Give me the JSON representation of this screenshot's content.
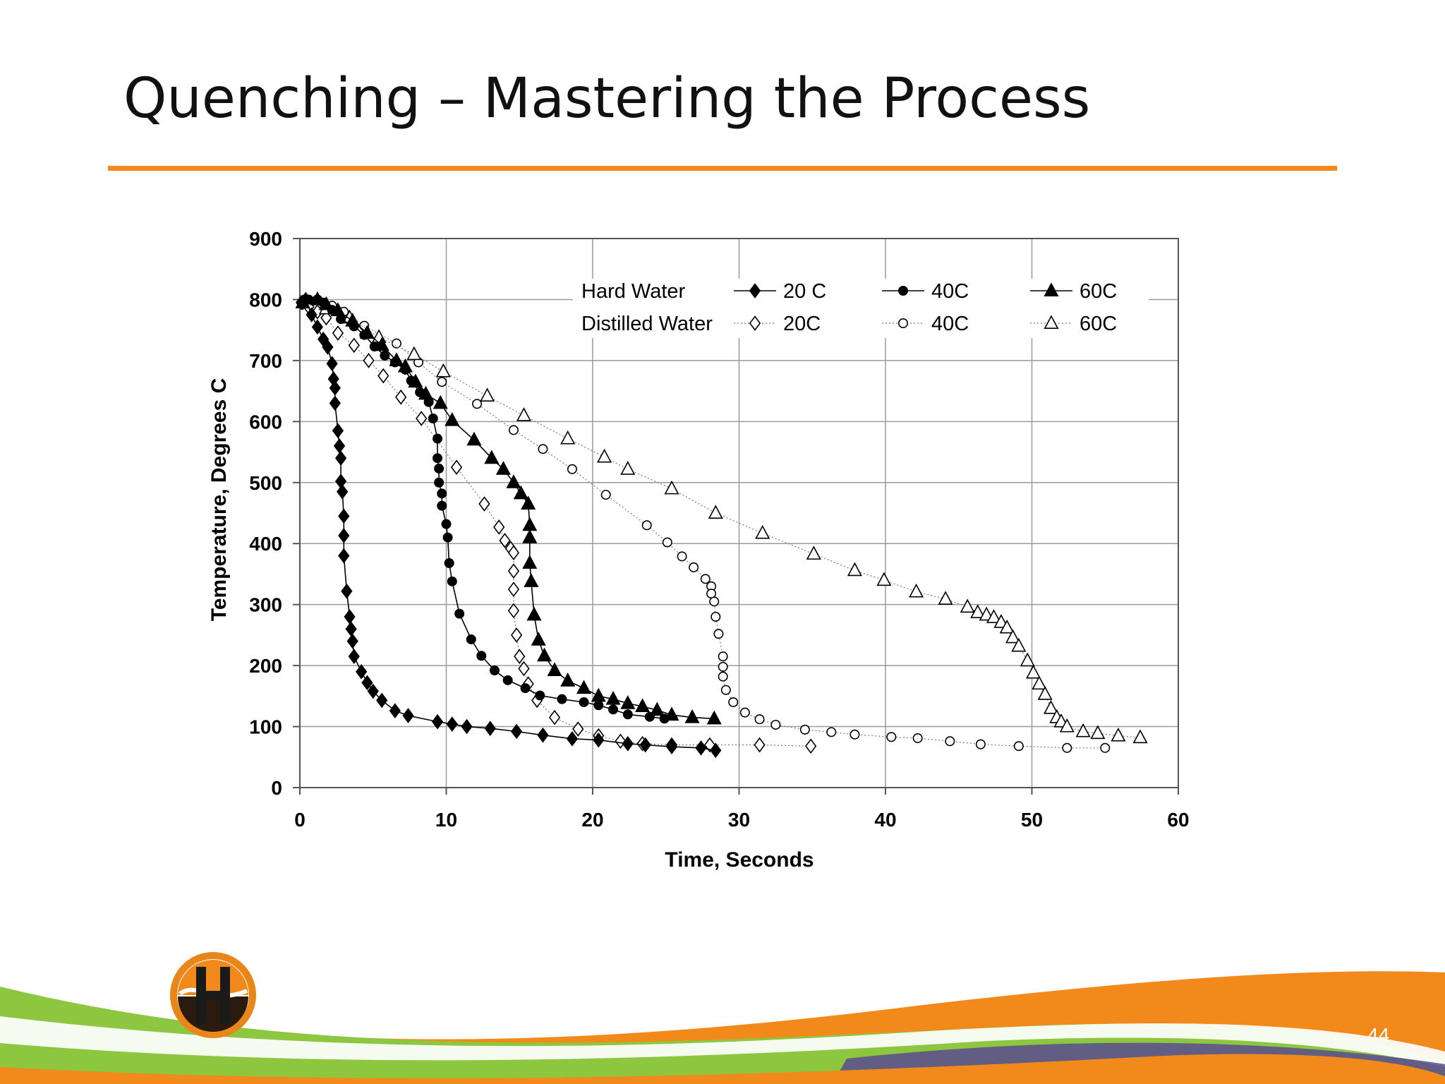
{
  "slide": {
    "title": "Quenching – Mastering the Process",
    "page_number": "44",
    "accent_color": "#f28a1b",
    "wave_colors": [
      "#f28a1b",
      "#8dc63f",
      "#5b4a8f"
    ]
  },
  "chart_data": {
    "type": "scatter",
    "xlabel": "Time, Seconds",
    "ylabel": "Temperature, Degrees C",
    "xlim": [
      0,
      60
    ],
    "ylim": [
      0,
      900
    ],
    "xticks": [
      "0",
      "10",
      "20",
      "30",
      "40",
      "50",
      "60"
    ],
    "yticks": [
      "0",
      "100",
      "200",
      "300",
      "400",
      "500",
      "600",
      "700",
      "800",
      "900"
    ],
    "grid": true,
    "legend_placement": "top-right",
    "legend": {
      "row_labels": [
        "Hard Water",
        "Distilled Water"
      ]
    },
    "series": [
      {
        "name": "20 C",
        "water": "Hard Water",
        "marker": "diamond",
        "filled": true,
        "line": "solid",
        "points": [
          [
            0.1,
            795
          ],
          [
            0.4,
            800
          ],
          [
            0.8,
            775
          ],
          [
            1.2,
            755
          ],
          [
            1.6,
            735
          ],
          [
            1.9,
            722
          ],
          [
            2.2,
            695
          ],
          [
            2.3,
            670
          ],
          [
            2.4,
            655
          ],
          [
            2.4,
            630
          ],
          [
            2.6,
            585
          ],
          [
            2.7,
            560
          ],
          [
            2.8,
            540
          ],
          [
            2.8,
            502
          ],
          [
            2.9,
            485
          ],
          [
            3.0,
            445
          ],
          [
            3.0,
            413
          ],
          [
            3.0,
            380
          ],
          [
            3.2,
            322
          ],
          [
            3.4,
            280
          ],
          [
            3.5,
            260
          ],
          [
            3.6,
            240
          ],
          [
            3.7,
            215
          ],
          [
            4.2,
            190
          ],
          [
            4.6,
            172
          ],
          [
            5.0,
            158
          ],
          [
            5.6,
            143
          ],
          [
            6.5,
            126
          ],
          [
            7.4,
            118
          ],
          [
            9.4,
            108
          ],
          [
            10.4,
            104
          ],
          [
            11.4,
            100
          ],
          [
            13.0,
            97
          ],
          [
            14.8,
            92
          ],
          [
            16.6,
            86
          ],
          [
            18.6,
            80
          ],
          [
            20.4,
            78
          ],
          [
            22.4,
            72
          ],
          [
            23.6,
            70
          ],
          [
            25.4,
            67
          ],
          [
            27.4,
            65
          ],
          [
            28.4,
            61
          ]
        ]
      },
      {
        "name": "40C",
        "water": "Hard Water",
        "marker": "circle",
        "filled": true,
        "line": "solid",
        "points": [
          [
            0.2,
            795
          ],
          [
            0.6,
            800
          ],
          [
            1.2,
            800
          ],
          [
            1.6,
            795
          ],
          [
            2.2,
            783
          ],
          [
            2.8,
            768
          ],
          [
            3.7,
            756
          ],
          [
            4.4,
            742
          ],
          [
            5.1,
            723
          ],
          [
            5.8,
            708
          ],
          [
            6.5,
            697
          ],
          [
            7.2,
            685
          ],
          [
            7.6,
            667
          ],
          [
            8.2,
            648
          ],
          [
            8.8,
            632
          ],
          [
            9.1,
            605
          ],
          [
            9.4,
            572
          ],
          [
            9.4,
            540
          ],
          [
            9.5,
            523
          ],
          [
            9.5,
            500
          ],
          [
            9.7,
            482
          ],
          [
            9.7,
            462
          ],
          [
            10.0,
            432
          ],
          [
            10.1,
            410
          ],
          [
            10.2,
            368
          ],
          [
            10.4,
            338
          ],
          [
            10.9,
            285
          ],
          [
            11.7,
            243
          ],
          [
            12.4,
            216
          ],
          [
            13.3,
            192
          ],
          [
            14.2,
            176
          ],
          [
            15.4,
            163
          ],
          [
            16.4,
            151
          ],
          [
            17.9,
            145
          ],
          [
            19.4,
            140
          ],
          [
            20.4,
            135
          ],
          [
            21.4,
            128
          ],
          [
            22.4,
            120
          ],
          [
            23.9,
            116
          ],
          [
            24.9,
            113
          ]
        ]
      },
      {
        "name": "60C",
        "water": "Hard Water",
        "marker": "triangle",
        "filled": true,
        "line": "solid",
        "points": [
          [
            0.2,
            795
          ],
          [
            1.2,
            800
          ],
          [
            1.8,
            792
          ],
          [
            2.6,
            782
          ],
          [
            3.6,
            765
          ],
          [
            4.6,
            745
          ],
          [
            5.6,
            725
          ],
          [
            6.6,
            700
          ],
          [
            7.2,
            690
          ],
          [
            7.9,
            665
          ],
          [
            8.6,
            645
          ],
          [
            9.6,
            630
          ],
          [
            10.4,
            602
          ],
          [
            11.9,
            570
          ],
          [
            13.1,
            540
          ],
          [
            13.9,
            522
          ],
          [
            14.6,
            500
          ],
          [
            15.1,
            482
          ],
          [
            15.6,
            465
          ],
          [
            15.7,
            430
          ],
          [
            15.7,
            410
          ],
          [
            15.7,
            368
          ],
          [
            15.8,
            338
          ],
          [
            16.0,
            283
          ],
          [
            16.3,
            242
          ],
          [
            16.7,
            216
          ],
          [
            17.4,
            192
          ],
          [
            18.3,
            175
          ],
          [
            19.4,
            163
          ],
          [
            20.4,
            150
          ],
          [
            21.4,
            145
          ],
          [
            22.4,
            138
          ],
          [
            23.4,
            133
          ],
          [
            24.4,
            127
          ],
          [
            25.4,
            119
          ],
          [
            26.8,
            115
          ],
          [
            28.3,
            113
          ]
        ]
      },
      {
        "name": "20C",
        "water": "Distilled Water",
        "marker": "diamond",
        "filled": false,
        "line": "dotted",
        "points": [
          [
            0.2,
            795
          ],
          [
            0.6,
            788
          ],
          [
            1.2,
            780
          ],
          [
            1.8,
            770
          ],
          [
            2.6,
            745
          ],
          [
            3.7,
            725
          ],
          [
            4.7,
            700
          ],
          [
            5.7,
            675
          ],
          [
            6.9,
            640
          ],
          [
            8.3,
            605
          ],
          [
            10.7,
            525
          ],
          [
            12.6,
            465
          ],
          [
            13.6,
            427
          ],
          [
            14.0,
            405
          ],
          [
            14.4,
            392
          ],
          [
            14.6,
            385
          ],
          [
            14.6,
            355
          ],
          [
            14.6,
            325
          ],
          [
            14.6,
            290
          ],
          [
            14.8,
            250
          ],
          [
            15.0,
            215
          ],
          [
            15.3,
            195
          ],
          [
            15.6,
            170
          ],
          [
            16.2,
            143
          ],
          [
            17.4,
            115
          ],
          [
            19.0,
            96
          ],
          [
            20.4,
            85
          ],
          [
            21.9,
            76
          ],
          [
            23.4,
            72
          ],
          [
            25.4,
            70
          ],
          [
            28.0,
            70
          ],
          [
            31.4,
            70
          ],
          [
            34.9,
            68
          ]
        ]
      },
      {
        "name": "40C",
        "water": "Distilled Water",
        "marker": "circle",
        "filled": false,
        "line": "dotted",
        "points": [
          [
            0.2,
            795
          ],
          [
            1.2,
            800
          ],
          [
            2.2,
            790
          ],
          [
            3.0,
            780
          ],
          [
            4.4,
            757
          ],
          [
            6.6,
            728
          ],
          [
            8.1,
            697
          ],
          [
            9.7,
            665
          ],
          [
            12.1,
            629
          ],
          [
            14.6,
            586
          ],
          [
            16.6,
            555
          ],
          [
            18.6,
            522
          ],
          [
            20.9,
            480
          ],
          [
            23.7,
            430
          ],
          [
            25.1,
            402
          ],
          [
            26.1,
            379
          ],
          [
            26.9,
            361
          ],
          [
            27.7,
            342
          ],
          [
            28.1,
            330
          ],
          [
            28.1,
            318
          ],
          [
            28.3,
            305
          ],
          [
            28.4,
            280
          ],
          [
            28.6,
            252
          ],
          [
            28.9,
            215
          ],
          [
            28.9,
            198
          ],
          [
            28.9,
            182
          ],
          [
            29.1,
            160
          ],
          [
            29.6,
            140
          ],
          [
            30.4,
            123
          ],
          [
            31.4,
            112
          ],
          [
            32.5,
            103
          ],
          [
            34.5,
            95
          ],
          [
            36.3,
            91
          ],
          [
            37.9,
            87
          ],
          [
            40.4,
            83
          ],
          [
            42.2,
            81
          ],
          [
            44.4,
            76
          ],
          [
            46.5,
            71
          ],
          [
            49.1,
            68
          ],
          [
            52.4,
            65
          ],
          [
            55.0,
            65
          ]
        ]
      },
      {
        "name": "60C",
        "water": "Distilled Water",
        "marker": "triangle",
        "filled": false,
        "line": "dotted",
        "points": [
          [
            0.2,
            795
          ],
          [
            1.8,
            785
          ],
          [
            3.4,
            770
          ],
          [
            5.4,
            738
          ],
          [
            7.8,
            710
          ],
          [
            9.8,
            682
          ],
          [
            12.8,
            642
          ],
          [
            15.3,
            610
          ],
          [
            18.3,
            572
          ],
          [
            20.8,
            542
          ],
          [
            22.4,
            522
          ],
          [
            25.4,
            490
          ],
          [
            28.4,
            450
          ],
          [
            31.6,
            417
          ],
          [
            35.1,
            383
          ],
          [
            37.9,
            356
          ],
          [
            39.9,
            340
          ],
          [
            42.1,
            321
          ],
          [
            44.1,
            309
          ],
          [
            45.6,
            296
          ],
          [
            46.3,
            287
          ],
          [
            46.9,
            283
          ],
          [
            47.4,
            279
          ],
          [
            47.9,
            271
          ],
          [
            48.3,
            262
          ],
          [
            48.7,
            246
          ],
          [
            49.1,
            232
          ],
          [
            49.7,
            208
          ],
          [
            50.1,
            188
          ],
          [
            50.5,
            170
          ],
          [
            50.9,
            153
          ],
          [
            51.3,
            130
          ],
          [
            51.7,
            115
          ],
          [
            52.0,
            108
          ],
          [
            52.4,
            100
          ],
          [
            53.5,
            92
          ],
          [
            54.5,
            89
          ],
          [
            55.9,
            85
          ],
          [
            57.4,
            82
          ]
        ]
      }
    ]
  }
}
